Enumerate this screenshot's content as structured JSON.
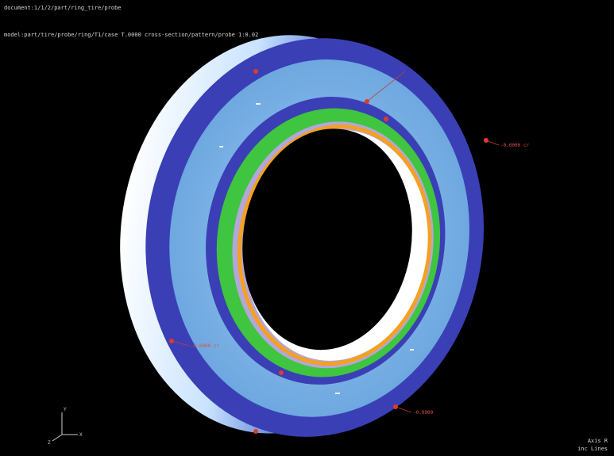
{
  "viewer": {
    "hud": {
      "line1": "document:1/1/2/part/ring_tire/probe",
      "line2": "model:part/tire/probe/ring/T1/case T.0000 cross-section/pattern/probe 1:0.02",
      "bottom_right_1": "Axis R",
      "bottom_right_2": "inc Lines"
    }
  },
  "annotations": [
    {
      "id": "a1",
      "text": "-0.0000 cr",
      "color": "#e05040"
    },
    {
      "id": "a2",
      "text": "-0.0000",
      "color": "#e05040"
    },
    {
      "id": "a3",
      "text": "-0.0000 cr",
      "color": "#e05040"
    }
  ],
  "axes": {
    "x": "X",
    "y": "Y",
    "z": "Z"
  },
  "colors": {
    "background": "#000000",
    "outer_band": "#3b3fb5",
    "light_band": "#78b4e8",
    "green_band": "#3fc53f",
    "inner_purple": "#b3a6d9",
    "orange_ring": "#f5a020",
    "rim_white": "#ffffff",
    "rim_blue": "#2a2e9a"
  }
}
